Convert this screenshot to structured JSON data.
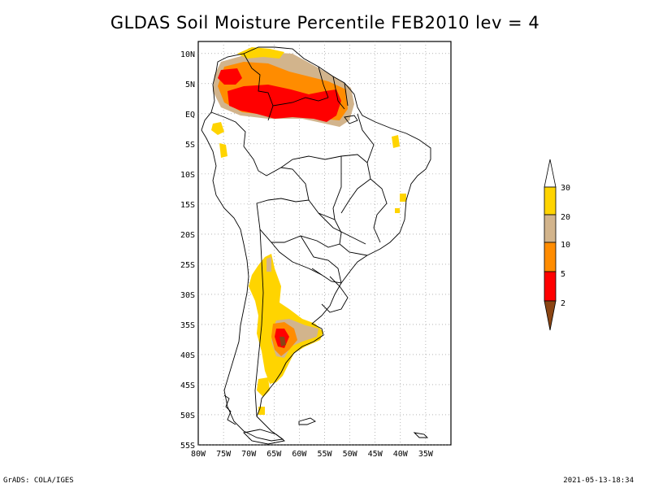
{
  "title": "GLDAS Soil Moisture Percentile FEB2010 lev = 4",
  "map": {
    "lon_range": [
      -80,
      -30
    ],
    "lat_range": [
      -55,
      12
    ],
    "lon_ticks": [
      "80W",
      "75W",
      "70W",
      "65W",
      "60W",
      "55W",
      "50W",
      "45W",
      "40W",
      "35W"
    ],
    "lat_ticks": [
      "10N",
      "5N",
      "EQ",
      "5S",
      "10S",
      "15S",
      "20S",
      "25S",
      "30S",
      "35S",
      "40S",
      "45S",
      "50S",
      "55S"
    ],
    "gridlines": "dotted"
  },
  "legend": {
    "labels": [
      "30",
      "20",
      "10",
      "5",
      "2"
    ],
    "colors": {
      "above_30": "#ffffff",
      "20_30": "#ffd400",
      "10_20": "#d2b48c",
      "5_10": "#ff8c00",
      "2_5": "#ff0000",
      "below_2": "#8b4513"
    }
  },
  "footer": {
    "left": "GrADS: COLA/IGES",
    "right": "2021-05-13-18:34"
  }
}
